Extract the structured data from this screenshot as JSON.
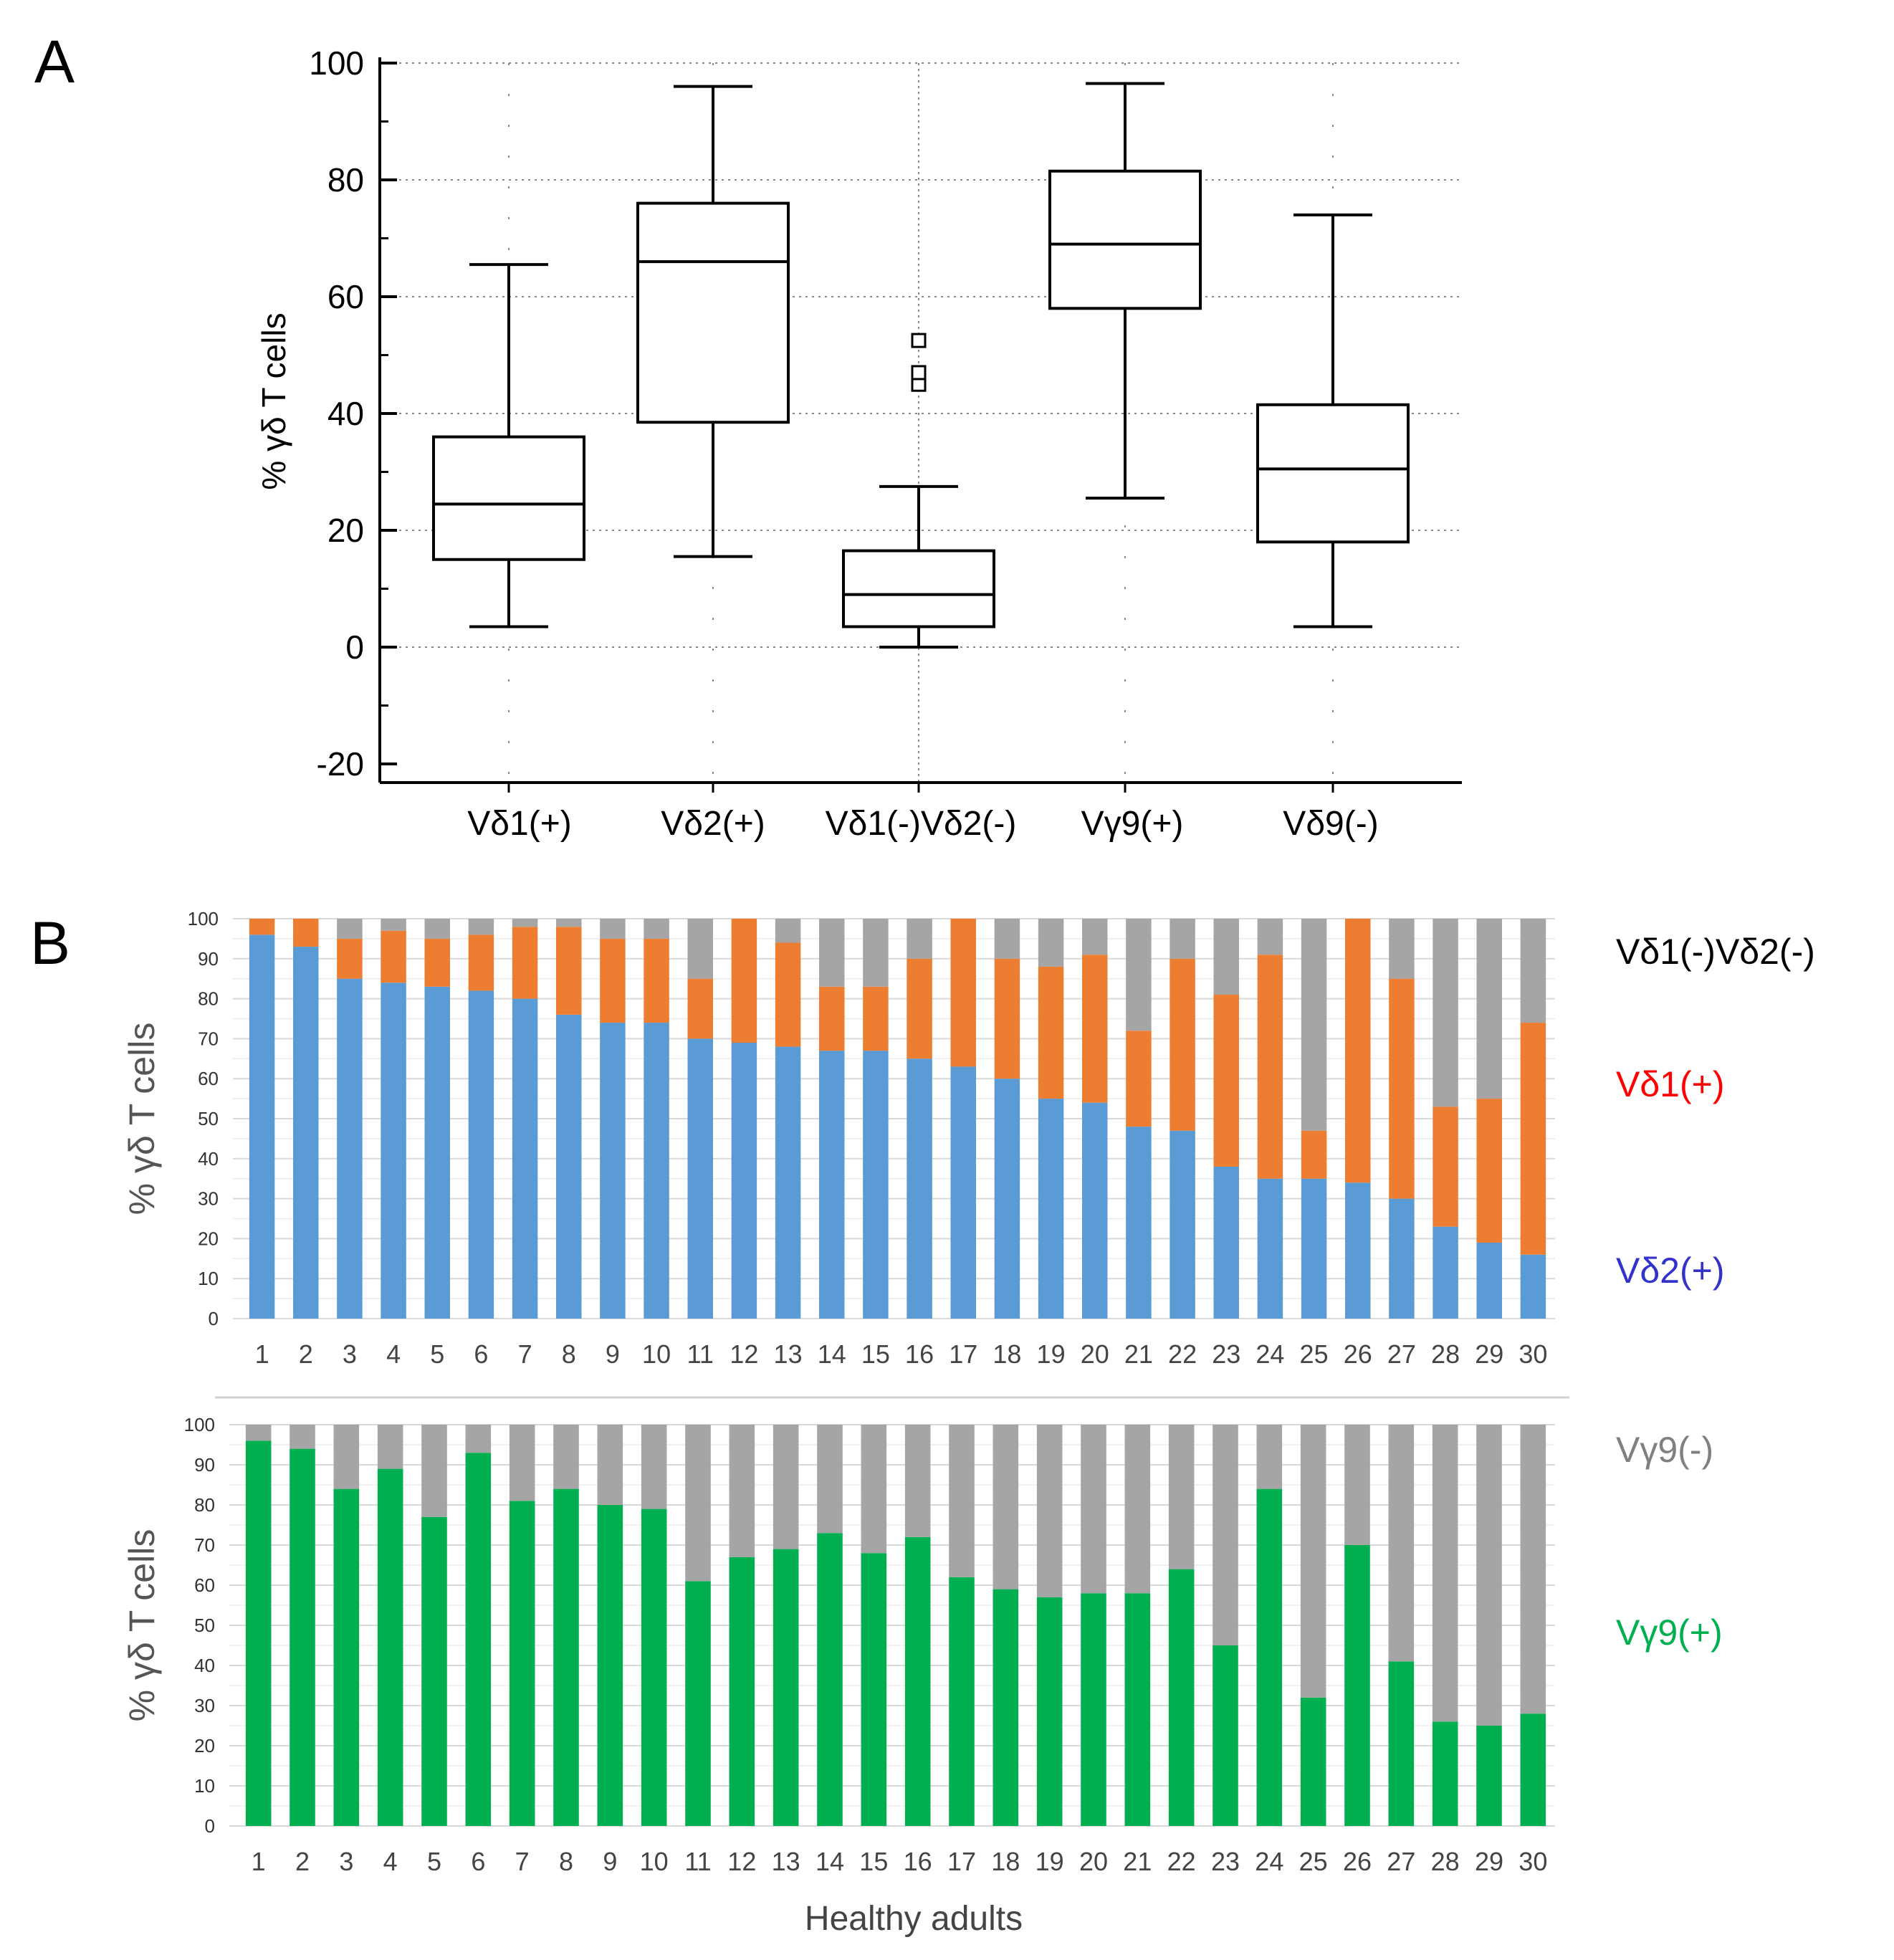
{
  "chart_data": [
    {
      "id": "A",
      "type": "box",
      "panel_label": "A",
      "ylabel": "% γδ T cells",
      "ylim": [
        -20,
        100
      ],
      "yticks": [
        -20,
        0,
        20,
        40,
        60,
        80,
        100
      ],
      "grid": true,
      "categories": [
        "Vδ1(+)",
        "Vδ2(+)",
        "Vδ1(-)Vδ2(-)",
        "Vγ9(+)",
        "Vδ9(-)"
      ],
      "boxes": [
        {
          "min": 3.5,
          "q1": 15,
          "median": 24.5,
          "q3": 36,
          "max": 65.5,
          "outliers": []
        },
        {
          "min": 15.5,
          "q1": 38.5,
          "median": 66,
          "q3": 76,
          "max": 96,
          "outliers": []
        },
        {
          "min": 0,
          "q1": 3.5,
          "median": 9,
          "q3": 16.5,
          "max": 27.5,
          "outliers": [
            45,
            47,
            52.5
          ]
        },
        {
          "min": 25.5,
          "q1": 58,
          "median": 69,
          "q3": 81.5,
          "max": 96.5,
          "outliers": []
        },
        {
          "min": 3.5,
          "q1": 18,
          "median": 30.5,
          "q3": 41.5,
          "max": 74,
          "outliers": []
        }
      ]
    },
    {
      "id": "B1",
      "type": "stacked_bar",
      "panel_label": "B",
      "ylabel": "% γδ T cells",
      "ylim": [
        0,
        100
      ],
      "yticks": [
        0,
        10,
        20,
        30,
        40,
        50,
        60,
        70,
        80,
        90,
        100
      ],
      "categories": [
        "1",
        "2",
        "3",
        "4",
        "5",
        "6",
        "7",
        "8",
        "9",
        "10",
        "11",
        "12",
        "13",
        "14",
        "15",
        "16",
        "17",
        "18",
        "19",
        "20",
        "21",
        "22",
        "23",
        "24",
        "25",
        "26",
        "27",
        "28",
        "29",
        "30"
      ],
      "series": [
        {
          "name": "Vδ2(+)",
          "color": "#5b9bd5",
          "values": [
            96,
            93,
            85,
            84,
            83,
            82,
            80,
            76,
            74,
            74,
            70,
            69,
            68,
            67,
            67,
            65,
            63,
            60,
            55,
            54,
            48,
            47,
            38,
            35,
            35,
            34,
            30,
            23,
            19,
            16
          ]
        },
        {
          "name": "Vδ1(+)",
          "color": "#ed7d31",
          "values": [
            4,
            7,
            10,
            13,
            12,
            14,
            18,
            22,
            21,
            21,
            15,
            31,
            26,
            16,
            16,
            25,
            37,
            30,
            33,
            37,
            24,
            43,
            43,
            56,
            12,
            66,
            55,
            30,
            36,
            58
          ]
        },
        {
          "name": "Vδ1(-)Vδ2(-)",
          "color": "#a5a5a5",
          "values": [
            0,
            0,
            5,
            3,
            5,
            4,
            2,
            2,
            5,
            5,
            15,
            0,
            6,
            17,
            17,
            10,
            0,
            10,
            12,
            9,
            28,
            10,
            19,
            9,
            53,
            0,
            15,
            47,
            45,
            26
          ]
        }
      ],
      "legend": [
        {
          "label": "Vδ1(-)Vδ2(-)",
          "color": "#000000"
        },
        {
          "label": "Vδ1(+)",
          "color": "#ff0000"
        },
        {
          "label": "Vδ2(+)",
          "color": "#3333cc"
        }
      ]
    },
    {
      "id": "B2",
      "type": "stacked_bar",
      "ylabel": "% γδ T cells",
      "xlabel": "Healthy adults",
      "ylim": [
        0,
        100
      ],
      "yticks": [
        0,
        10,
        20,
        30,
        40,
        50,
        60,
        70,
        80,
        90,
        100
      ],
      "categories": [
        "1",
        "2",
        "3",
        "4",
        "5",
        "6",
        "7",
        "8",
        "9",
        "10",
        "11",
        "12",
        "13",
        "14",
        "15",
        "16",
        "17",
        "18",
        "19",
        "20",
        "21",
        "22",
        "23",
        "24",
        "25",
        "26",
        "27",
        "28",
        "29",
        "30"
      ],
      "series": [
        {
          "name": "Vγ9(+)",
          "color": "#00b050",
          "values": [
            96,
            94,
            84,
            89,
            77,
            93,
            81,
            84,
            80,
            79,
            61,
            67,
            69,
            73,
            68,
            72,
            62,
            59,
            57,
            58,
            58,
            64,
            45,
            84,
            32,
            70,
            41,
            26,
            25,
            28
          ]
        },
        {
          "name": "Vγ9(-)",
          "color": "#a5a5a5",
          "values": [
            4,
            6,
            16,
            11,
            23,
            7,
            19,
            16,
            20,
            21,
            39,
            33,
            31,
            27,
            32,
            28,
            38,
            41,
            43,
            42,
            42,
            36,
            55,
            16,
            68,
            30,
            59,
            74,
            75,
            72
          ]
        }
      ],
      "legend": [
        {
          "label": "Vγ9(-)",
          "color": "#808080"
        },
        {
          "label": "Vγ9(+)",
          "color": "#00b050"
        }
      ]
    }
  ]
}
